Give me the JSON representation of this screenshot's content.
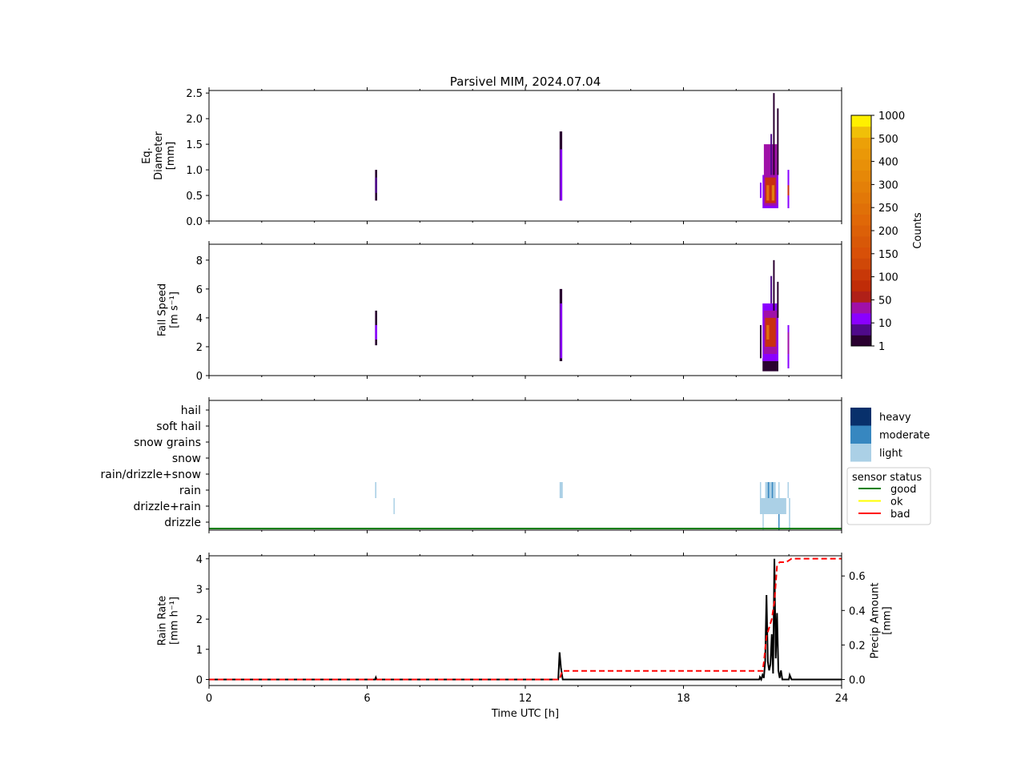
{
  "chart_data": [
    {
      "type": "heatmap",
      "title": "Parsivel MIM, 2024.07.04",
      "ylabel": [
        "Eq.",
        "Diameter",
        "[mm]"
      ],
      "ylim": [
        0,
        2.55
      ],
      "yticks": [
        "0.0",
        "0.5",
        "1.0",
        "1.5",
        "2.0",
        "2.5"
      ],
      "ytick_values": [
        0,
        0.5,
        1,
        1.5,
        2,
        2.5
      ],
      "cells": [
        [
          6.3,
          6.38,
          0.4,
          1.0,
          "#2a0030"
        ],
        [
          6.3,
          6.38,
          0.55,
          0.85,
          "#4f0a8a"
        ],
        [
          13.3,
          13.4,
          0.4,
          1.75,
          "#2a0030"
        ],
        [
          13.32,
          13.4,
          0.4,
          1.4,
          "#8a00ff"
        ],
        [
          20.9,
          20.95,
          0.45,
          0.75,
          "#8a00ff"
        ],
        [
          21.0,
          21.6,
          0.25,
          0.9,
          "#8a00ff"
        ],
        [
          21.05,
          21.55,
          0.3,
          1.5,
          "#a010a8"
        ],
        [
          21.1,
          21.5,
          0.35,
          0.85,
          "#c83010"
        ],
        [
          21.15,
          21.25,
          0.4,
          0.7,
          "#e07010"
        ],
        [
          21.35,
          21.45,
          0.4,
          0.7,
          "#e08010"
        ],
        [
          21.4,
          21.45,
          0.9,
          2.5,
          "#2a0030"
        ],
        [
          21.3,
          21.35,
          0.9,
          1.7,
          "#4f0a8a"
        ],
        [
          21.55,
          21.6,
          0.9,
          2.2,
          "#2a0030"
        ],
        [
          21.95,
          22.0,
          0.25,
          1.0,
          "#8a00ff"
        ],
        [
          21.95,
          22.0,
          0.5,
          0.7,
          "#c83010"
        ]
      ]
    },
    {
      "type": "heatmap",
      "ylabel": [
        "Fall Speed",
        "[m s⁻¹]"
      ],
      "ylim": [
        0,
        9.1
      ],
      "yticks": [
        "0",
        "2",
        "4",
        "6",
        "8"
      ],
      "ytick_values": [
        0,
        2,
        4,
        6,
        8
      ],
      "cells": [
        [
          6.3,
          6.38,
          2.1,
          4.5,
          "#2a0030"
        ],
        [
          6.3,
          6.38,
          2.5,
          3.5,
          "#8a00ff"
        ],
        [
          13.3,
          13.4,
          1.0,
          6.0,
          "#2a0030"
        ],
        [
          13.32,
          13.4,
          1.2,
          5.0,
          "#8a00ff"
        ],
        [
          20.9,
          20.95,
          1.2,
          3.5,
          "#2a0030"
        ],
        [
          21.0,
          21.6,
          0.3,
          1.2,
          "#2a0030"
        ],
        [
          21.0,
          21.6,
          1.0,
          5.0,
          "#8a00ff"
        ],
        [
          21.05,
          21.55,
          1.5,
          4.5,
          "#a010a8"
        ],
        [
          21.1,
          21.5,
          2.0,
          4.0,
          "#c83010"
        ],
        [
          21.15,
          21.25,
          2.5,
          3.5,
          "#e07010"
        ],
        [
          21.4,
          21.45,
          4.5,
          8.0,
          "#2a0030"
        ],
        [
          21.3,
          21.35,
          5,
          6.9,
          "#4f0a8a"
        ],
        [
          21.55,
          21.6,
          4,
          6.5,
          "#2a0030"
        ],
        [
          21.95,
          22.0,
          0.5,
          3.5,
          "#8a00ff"
        ],
        [
          21.95,
          22.0,
          1.5,
          3.0,
          "#a010a8"
        ]
      ]
    },
    {
      "type": "table",
      "categories": [
        "hail",
        "soft hail",
        "snow grains",
        "snow",
        "rain/drizzle+snow",
        "rain",
        "drizzle+rain",
        "drizzle"
      ],
      "intensity_legend": [
        {
          "label": "heavy",
          "color": "#08306b"
        },
        {
          "label": "moderate",
          "color": "#3787c0"
        },
        {
          "label": "light",
          "color": "#abd0e6"
        }
      ],
      "status_legend": {
        "title": "sensor status",
        "entries": [
          {
            "label": "good",
            "color": "#008000"
          },
          {
            "label": "ok",
            "color": "#ffff00"
          },
          {
            "label": "bad",
            "color": "#ff0000"
          }
        ]
      },
      "events": [
        [
          6.3,
          6.35,
          "rain",
          "light"
        ],
        [
          13.3,
          13.42,
          "rain",
          "light"
        ],
        [
          7.0,
          7.02,
          "drizzle+rain",
          "light"
        ],
        [
          20.9,
          20.93,
          "rain",
          "light"
        ],
        [
          21.1,
          21.5,
          "rain",
          "light"
        ],
        [
          21.2,
          21.25,
          "rain",
          "moderate"
        ],
        [
          21.35,
          21.38,
          "rain",
          "moderate"
        ],
        [
          21.6,
          21.62,
          "rain",
          "light"
        ],
        [
          21.95,
          21.98,
          "rain",
          "light"
        ],
        [
          20.9,
          21.9,
          "drizzle+rain",
          "light"
        ],
        [
          22.0,
          22.05,
          "drizzle+rain",
          "light"
        ],
        [
          21.0,
          21.03,
          "drizzle",
          "light"
        ],
        [
          21.6,
          21.63,
          "drizzle",
          "moderate"
        ],
        [
          22.0,
          22.05,
          "drizzle",
          "light"
        ]
      ],
      "status": "good"
    },
    {
      "type": "line",
      "xlabel": "Time UTC [h]",
      "xlim": [
        0,
        24
      ],
      "xticks": [
        "0",
        "6",
        "12",
        "18",
        "24"
      ],
      "xtick_values": [
        0,
        6,
        12,
        18,
        24
      ],
      "ylabel": [
        "Rain Rate",
        "[mm h⁻¹]"
      ],
      "ylim": [
        -0.2,
        4.1
      ],
      "yticks": [
        "0",
        "1",
        "2",
        "3",
        "4"
      ],
      "ytick_values": [
        0,
        1,
        2,
        3,
        4
      ],
      "y2label": [
        "Precip Amount",
        "[mm]"
      ],
      "y2lim": [
        -0.035,
        0.717
      ],
      "y2ticks": [
        "0.0",
        "0.2",
        "0.4",
        "0.6"
      ],
      "y2tick_values": [
        0,
        0.2,
        0.4,
        0.6
      ],
      "series": [
        {
          "name": "rain rate",
          "color": "#000000",
          "x": [
            0,
            6.3,
            6.33,
            6.36,
            13.25,
            13.3,
            13.35,
            13.42,
            13.5,
            20.88,
            20.9,
            20.95,
            21.0,
            21.05,
            21.1,
            21.15,
            21.2,
            21.25,
            21.3,
            21.35,
            21.4,
            21.45,
            21.5,
            21.55,
            21.6,
            21.65,
            21.7,
            21.75,
            22.0,
            22.03,
            22.1,
            24
          ],
          "y": [
            0,
            0,
            0.07,
            0,
            0,
            0.9,
            0.4,
            0,
            0,
            0,
            0.08,
            0,
            0.15,
            0.05,
            0.6,
            2.8,
            0.6,
            0.3,
            0.5,
            1.5,
            0.2,
            4.0,
            0.7,
            2.2,
            0.3,
            0.05,
            0.3,
            0,
            0,
            0.15,
            0,
            0
          ]
        },
        {
          "name": "precip amount",
          "color": "#ff0000",
          "dashed": true,
          "x": [
            0,
            13.3,
            13.4,
            21.0,
            21.05,
            21.15,
            21.25,
            21.35,
            21.45,
            21.55,
            21.65,
            21.9,
            22.0,
            22.1,
            24
          ],
          "y": [
            0,
            0,
            0.05,
            0.05,
            0.1,
            0.25,
            0.3,
            0.35,
            0.45,
            0.66,
            0.68,
            0.68,
            0.69,
            0.7,
            0.7
          ]
        }
      ]
    }
  ],
  "colorbar": {
    "label": "Counts",
    "ticks": [
      "1",
      "10",
      "50",
      "100",
      "150",
      "200",
      "250",
      "300",
      "400",
      "500",
      "1000"
    ],
    "colors": [
      "#2a0030",
      "#4f0a8a",
      "#8a00ff",
      "#a010a8",
      "#b02018",
      "#c02c08",
      "#c83808",
      "#d04808",
      "#d85008",
      "#d85808",
      "#dc6008",
      "#e06808",
      "#e07008",
      "#e27808",
      "#e48008",
      "#e68808",
      "#e89008",
      "#ea9808",
      "#eca008",
      "#f0c008",
      "#fff000"
    ]
  }
}
